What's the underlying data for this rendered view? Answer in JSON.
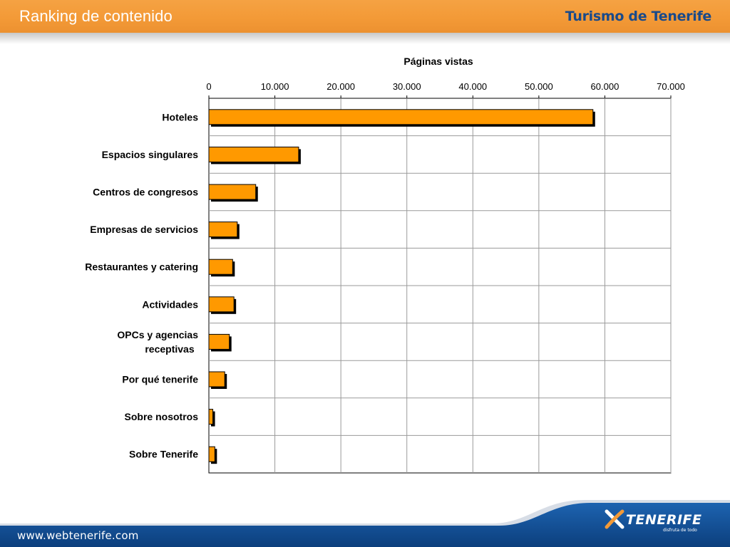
{
  "header": {
    "title": "Ranking de contenido",
    "brand": "Turismo de Tenerife"
  },
  "footer": {
    "url": "www.webtenerife.com",
    "logo_text": "TENERIFE",
    "logo_tagline": "disfruta de todo",
    "logo_icon": "x-logo-icon"
  },
  "colors": {
    "header_orange": "#f39a37",
    "brand_blue": "#1a4a8a",
    "bar_fill": "#ff9900",
    "footer_blue": "#0d4a8f"
  },
  "chart_data": {
    "type": "bar",
    "orientation": "horizontal",
    "title": "Páginas vistas",
    "categories": [
      "Hoteles",
      "Espacios singulares",
      "Centros de congresos",
      "Empresas de servicios",
      "Restaurantes y catering",
      "Actividades",
      "OPCs y agencias receptivas",
      "Por qué tenerife",
      "Sobre nosotros",
      "Sobre Tenerife"
    ],
    "values": [
      58200,
      13600,
      7100,
      4300,
      3600,
      3800,
      3100,
      2400,
      600,
      900
    ],
    "xlim": [
      0,
      70000
    ],
    "x_ticks": [
      0,
      10000,
      20000,
      30000,
      40000,
      50000,
      60000,
      70000
    ],
    "x_tick_labels": [
      "0",
      "10.000",
      "20.000",
      "30.000",
      "40.000",
      "50.000",
      "60.000",
      "70.000"
    ],
    "axis_position": "top",
    "grid": true,
    "legend": "none"
  }
}
